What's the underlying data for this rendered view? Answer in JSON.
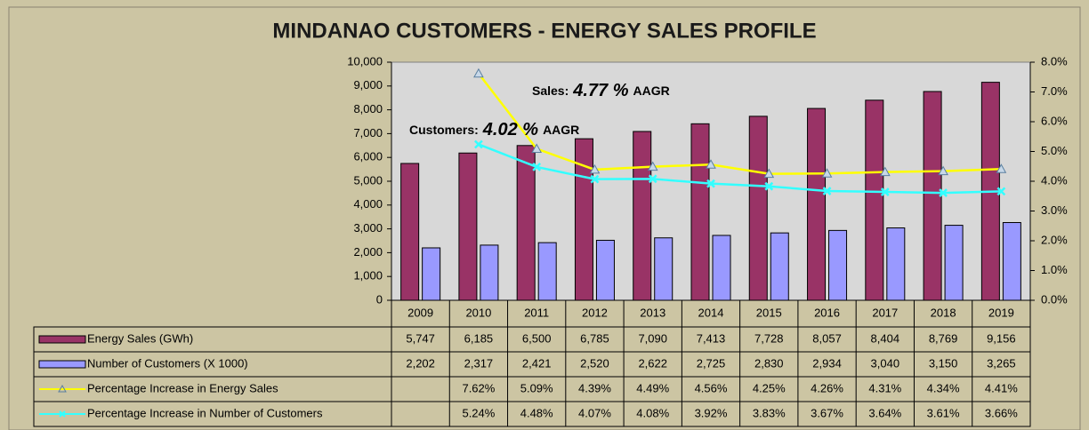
{
  "chart_data": {
    "type": "bar",
    "title": "MINDANAO CUSTOMERS - ENERGY SALES PROFILE",
    "categories": [
      "2009",
      "2010",
      "2011",
      "2012",
      "2013",
      "2014",
      "2015",
      "2016",
      "2017",
      "2018",
      "2019"
    ],
    "series": [
      {
        "name": "Energy Sales (GWh)",
        "color": "#993366",
        "type": "bar",
        "values": [
          5747,
          6185,
          6500,
          6785,
          7090,
          7413,
          7728,
          8057,
          8404,
          8769,
          9156
        ],
        "value_labels": [
          "5,747",
          "6,185",
          "6,500",
          "6,785",
          "7,090",
          "7,413",
          "7,728",
          "8,057",
          "8,404",
          "8,769",
          "9,156"
        ]
      },
      {
        "name": "Number of Customers (X 1000)",
        "color": "#9999ff",
        "type": "bar",
        "values": [
          2202,
          2317,
          2421,
          2520,
          2622,
          2725,
          2830,
          2934,
          3040,
          3150,
          3265
        ],
        "value_labels": [
          "2,202",
          "2,317",
          "2,421",
          "2,520",
          "2,622",
          "2,725",
          "2,830",
          "2,934",
          "3,040",
          "3,150",
          "3,265"
        ]
      },
      {
        "name": "Percentage Increase in Energy Sales",
        "color": "#ffff00",
        "type": "line",
        "axis": "y2",
        "marker": "triangle",
        "values": [
          null,
          7.62,
          5.09,
          4.39,
          4.49,
          4.56,
          4.25,
          4.26,
          4.31,
          4.34,
          4.41
        ],
        "value_labels": [
          null,
          "7.62%",
          "5.09%",
          "4.39%",
          "4.49%",
          "4.56%",
          "4.25%",
          "4.26%",
          "4.31%",
          "4.34%",
          "4.41%"
        ]
      },
      {
        "name": "Percentage Increase in Number of Customers",
        "color": "#33ffff",
        "type": "line",
        "axis": "y2",
        "marker": "x",
        "values": [
          null,
          5.24,
          4.48,
          4.07,
          4.08,
          3.92,
          3.83,
          3.67,
          3.64,
          3.61,
          3.66
        ],
        "value_labels": [
          null,
          "5.24%",
          "4.48%",
          "4.07%",
          "4.08%",
          "3.92%",
          "3.83%",
          "3.67%",
          "3.64%",
          "3.61%",
          "3.66%"
        ]
      }
    ],
    "ylim": [
      0,
      10000
    ],
    "yticks": [
      0,
      {
        "value": 1000,
        "label": "1,000"
      },
      {
        "value": 2000,
        "label": "2,000"
      },
      {
        "value": 3000,
        "label": "3,000"
      },
      {
        "value": 4000,
        "label": "4,000"
      },
      {
        "value": 5000,
        "label": "5,000"
      },
      {
        "value": 6000,
        "label": "6,000"
      },
      {
        "value": 7000,
        "label": "7,000"
      },
      {
        "value": 8000,
        "label": "8,000"
      },
      {
        "value": 9000,
        "label": "9,000"
      },
      {
        "value": 10000,
        "label": "10,000"
      }
    ],
    "y2lim": [
      0,
      8
    ],
    "y2ticks": [
      {
        "value": 0,
        "label": "0.0%"
      },
      {
        "value": 1,
        "label": "1.0%"
      },
      {
        "value": 2,
        "label": "2.0%"
      },
      {
        "value": 3,
        "label": "3.0%"
      },
      {
        "value": 4,
        "label": "4.0%"
      },
      {
        "value": 5,
        "label": "5.0%"
      },
      {
        "value": 6,
        "label": "6.0%"
      },
      {
        "value": 7,
        "label": "7.0%"
      },
      {
        "value": 8,
        "label": "8.0%"
      }
    ],
    "annotations": [
      {
        "prefix": "Sales:",
        "value": "4.77 %",
        "suffix": "AAGR"
      },
      {
        "prefix": "Customers:",
        "value": "4.02 %",
        "suffix": "AAGR"
      }
    ]
  }
}
